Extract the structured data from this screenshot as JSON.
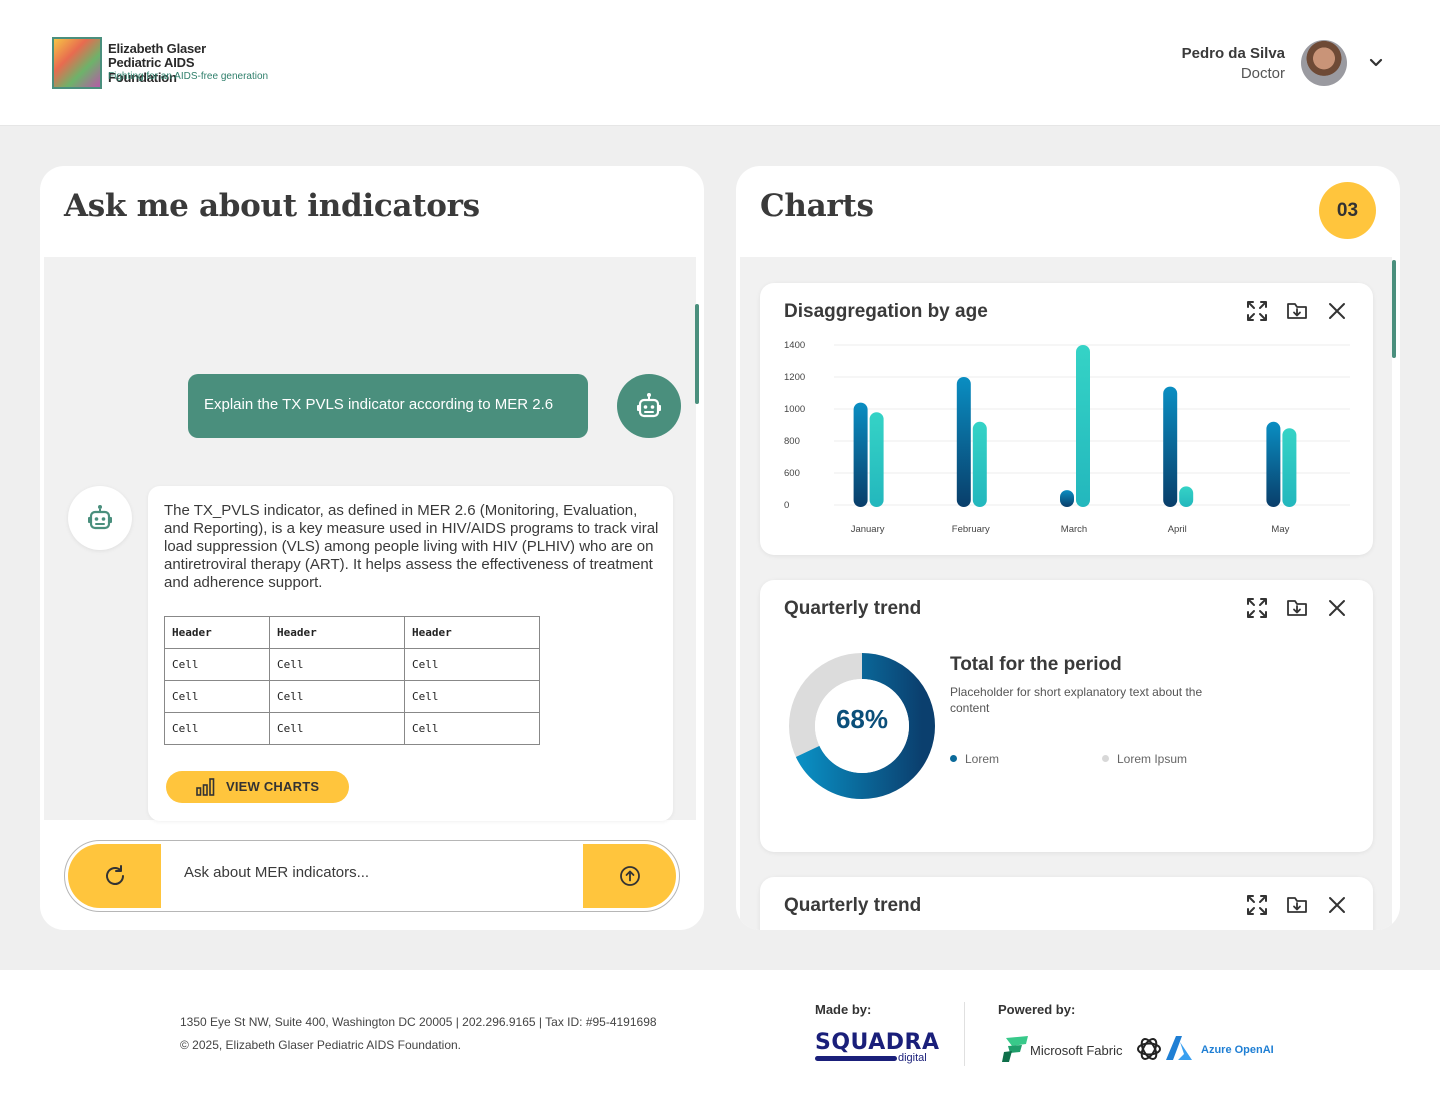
{
  "brand": {
    "name_line1": "Elizabeth Glaser",
    "name_line2": "Pediatric AIDS Foundation",
    "tagline": "Fighting for an AIDS-free generation"
  },
  "user": {
    "name": "Pedro da Silva",
    "role": "Doctor",
    "avatar_icon": "avatar-photo",
    "menu_icon": "chevron-down-icon"
  },
  "chat": {
    "title": "Ask me about indicators",
    "user_message": "Explain the TX PVLS indicator according to MER 2.6",
    "bot_message": "The TX_PVLS indicator, as defined in MER 2.6 (Monitoring, Evaluation, and Reporting), is a key measure used in HIV/AIDS programs to track viral load suppression (VLS) among people living with HIV (PLHIV) who are on antiretroviral therapy (ART). It helps assess the effectiveness of treatment and adherence support.",
    "table": {
      "headers": [
        "Header",
        "Header",
        "Header"
      ],
      "rows": [
        [
          "Cell",
          "Cell",
          "Cell"
        ],
        [
          "Cell",
          "Cell",
          "Cell"
        ],
        [
          "Cell",
          "Cell",
          "Cell"
        ]
      ]
    },
    "view_charts_label": "VIEW CHARTS",
    "input_placeholder": "Ask about MER indicators..."
  },
  "charts_panel": {
    "title": "Charts",
    "count": "03",
    "accent_color": "#ffc53d",
    "brand_green": "#4a8f7d"
  },
  "chart_cards": [
    {
      "title": "Disaggregation by age"
    },
    {
      "title": "Quarterly trend",
      "donut_value": "68%",
      "summary_title": "Total for the period",
      "summary_text": "Placeholder for short explanatory text about the content",
      "legend": [
        {
          "label": "Lorem",
          "color": "#0b6a9a"
        },
        {
          "label": "Lorem Ipsum",
          "color": "#d8d8d8"
        }
      ]
    },
    {
      "title": "Quarterly trend"
    }
  ],
  "chart_data": [
    {
      "type": "bar",
      "title": "Disaggregation by age",
      "categories": [
        "January",
        "February",
        "March",
        "April",
        "May"
      ],
      "y_tick_labels": [
        "0",
        "600",
        "800",
        "1000",
        "1200",
        "1400"
      ],
      "series": [
        {
          "values": [
            1040,
            1200,
            280,
            1140,
            920
          ],
          "color": "#0b6a9a"
        },
        {
          "values": [
            980,
            920,
            1570,
            350,
            880
          ],
          "color": "#2ec8c0"
        }
      ],
      "grid": true
    },
    {
      "type": "pie",
      "title": "Total for the period",
      "values": [
        68,
        32
      ],
      "labels": [
        "Lorem",
        "Lorem Ipsum"
      ]
    }
  ],
  "footer": {
    "address": "1350 Eye St NW, Suite 400, Washington DC 20005 | 202.296.9165 | Tax ID: #95-4191698",
    "copyright": "© 2025, Elizabeth Glaser Pediatric AIDS Foundation.",
    "made_by_label": "Made by:",
    "made_by_name": "SQUADRA",
    "made_by_sub": "digital",
    "powered_by_label": "Powered by:",
    "fabric_label": "Microsoft Fabric",
    "azure_label": "Azure OpenAI"
  }
}
